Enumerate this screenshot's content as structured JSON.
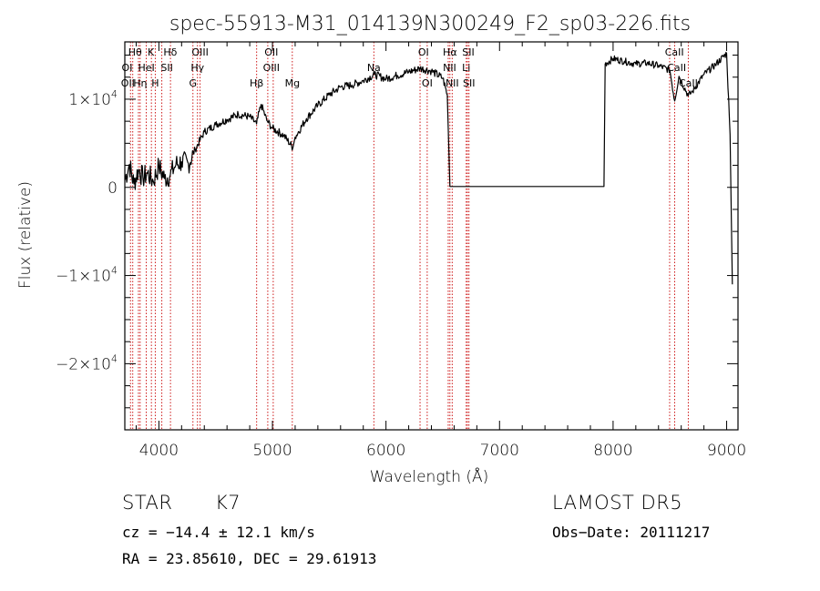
{
  "chart_data": {
    "type": "line",
    "title": "spec-55913-M31_014139N300249_F2_sp03-226.fits",
    "xlabel": "Wavelength (Å)",
    "ylabel": "Flux (relative)",
    "xlim": [
      3700,
      9100
    ],
    "ylim": [
      -27500,
      16500
    ],
    "x_ticks": [
      {
        "value": 4000,
        "label": "4000"
      },
      {
        "value": 5000,
        "label": "5000"
      },
      {
        "value": 6000,
        "label": "6000"
      },
      {
        "value": 7000,
        "label": "7000"
      },
      {
        "value": 8000,
        "label": "8000"
      },
      {
        "value": 9000,
        "label": "9000"
      }
    ],
    "y_ticks": [
      {
        "value": 10000,
        "mantissa": "1×10",
        "exp": "4"
      },
      {
        "value": 0,
        "mantissa": "0",
        "exp": ""
      },
      {
        "value": -10000,
        "mantissa": "−1×10",
        "exp": "4"
      },
      {
        "value": -20000,
        "mantissa": "−2×10",
        "exp": "4"
      }
    ],
    "spectrum": {
      "color": "#000000",
      "points": [
        [
          3700,
          800
        ],
        [
          3740,
          2600
        ],
        [
          3780,
          400
        ],
        [
          3820,
          2000
        ],
        [
          3860,
          1100
        ],
        [
          3900,
          1600
        ],
        [
          3950,
          700
        ],
        [
          4000,
          2400
        ],
        [
          4050,
          1000
        ],
        [
          4100,
          1400
        ],
        [
          4150,
          2600
        ],
        [
          4200,
          2900
        ],
        [
          4260,
          2700
        ],
        [
          4320,
          4300
        ],
        [
          4400,
          6300
        ],
        [
          4500,
          7100
        ],
        [
          4600,
          7700
        ],
        [
          4700,
          8300
        ],
        [
          4800,
          8000
        ],
        [
          4860,
          7200
        ],
        [
          4900,
          9400
        ],
        [
          4950,
          7600
        ],
        [
          5000,
          6700
        ],
        [
          5100,
          5900
        ],
        [
          5180,
          4500
        ],
        [
          5200,
          5700
        ],
        [
          5300,
          7800
        ],
        [
          5400,
          9300
        ],
        [
          5500,
          10500
        ],
        [
          5600,
          11400
        ],
        [
          5700,
          11600
        ],
        [
          5800,
          12100
        ],
        [
          5900,
          12800
        ],
        [
          6000,
          12300
        ],
        [
          6100,
          12700
        ],
        [
          6200,
          13100
        ],
        [
          6300,
          13500
        ],
        [
          6400,
          13200
        ],
        [
          6500,
          12400
        ],
        [
          6540,
          10500
        ],
        [
          6563,
          100
        ],
        [
          7920,
          100
        ],
        [
          7930,
          14000
        ],
        [
          8000,
          14600
        ],
        [
          8100,
          14300
        ],
        [
          8200,
          14000
        ],
        [
          8300,
          14100
        ],
        [
          8400,
          13800
        ],
        [
          8500,
          13300
        ],
        [
          8542,
          9800
        ],
        [
          8580,
          12600
        ],
        [
          8662,
          10400
        ],
        [
          8700,
          10900
        ],
        [
          8800,
          12800
        ],
        [
          8900,
          13900
        ],
        [
          9000,
          15200
        ],
        [
          9030,
          6000
        ],
        [
          9050,
          -11000
        ]
      ]
    },
    "line_markers": {
      "color": "#c80000",
      "wavelengths": [
        3750,
        3770,
        3820,
        3835,
        3889,
        3934,
        3968,
        4026,
        4102,
        4300,
        4340,
        4363,
        4861,
        4959,
        5007,
        5175,
        5893,
        6300,
        6363,
        6548,
        6563,
        6583,
        6707,
        6717,
        6731,
        8498,
        8542,
        8662
      ],
      "labels": [
        {
          "text": "Hθ",
          "wavelength": 3790,
          "row": 1
        },
        {
          "text": "K",
          "wavelength": 3930,
          "row": 1
        },
        {
          "text": "Hδ",
          "wavelength": 4100,
          "row": 1
        },
        {
          "text": "OIII",
          "wavelength": 4363,
          "row": 1
        },
        {
          "text": "OII",
          "wavelength": 4990,
          "row": 1
        },
        {
          "text": "OI",
          "wavelength": 6330,
          "row": 1
        },
        {
          "text": "Hα",
          "wavelength": 6563,
          "row": 1
        },
        {
          "text": "SII",
          "wavelength": 6725,
          "row": 1
        },
        {
          "text": "CaII",
          "wavelength": 8540,
          "row": 1
        },
        {
          "text": "OI",
          "wavelength": 3720,
          "row": 2
        },
        {
          "text": "HeI",
          "wavelength": 3890,
          "row": 2
        },
        {
          "text": "SII",
          "wavelength": 4070,
          "row": 2
        },
        {
          "text": "Hγ",
          "wavelength": 4340,
          "row": 2
        },
        {
          "text": "OIII",
          "wavelength": 4990,
          "row": 2
        },
        {
          "text": "Na",
          "wavelength": 5893,
          "row": 2
        },
        {
          "text": "NII",
          "wavelength": 6560,
          "row": 2
        },
        {
          "text": "Li",
          "wavelength": 6707,
          "row": 2
        },
        {
          "text": "CaII",
          "wavelength": 8560,
          "row": 2
        },
        {
          "text": "OII",
          "wavelength": 3727,
          "row": 3
        },
        {
          "text": "Hη",
          "wavelength": 3835,
          "row": 3
        },
        {
          "text": "H",
          "wavelength": 3968,
          "row": 3
        },
        {
          "text": "G",
          "wavelength": 4300,
          "row": 3
        },
        {
          "text": "Hβ",
          "wavelength": 4861,
          "row": 3
        },
        {
          "text": "Mg",
          "wavelength": 5175,
          "row": 3
        },
        {
          "text": "OI",
          "wavelength": 6363,
          "row": 3
        },
        {
          "text": "NII",
          "wavelength": 6583,
          "row": 3
        },
        {
          "text": "SII",
          "wavelength": 6731,
          "row": 3
        },
        {
          "text": "CaII",
          "wavelength": 8662,
          "row": 3
        }
      ]
    }
  },
  "info": {
    "object_class": "STAR",
    "subclass": "K7",
    "survey": "LAMOST  DR5",
    "cz": "cz = −14.4 ± 12.1 km/s",
    "obs_date": "Obs−Date: 20111217",
    "coords": "RA =  23.85610, DEC =  29.61913"
  }
}
